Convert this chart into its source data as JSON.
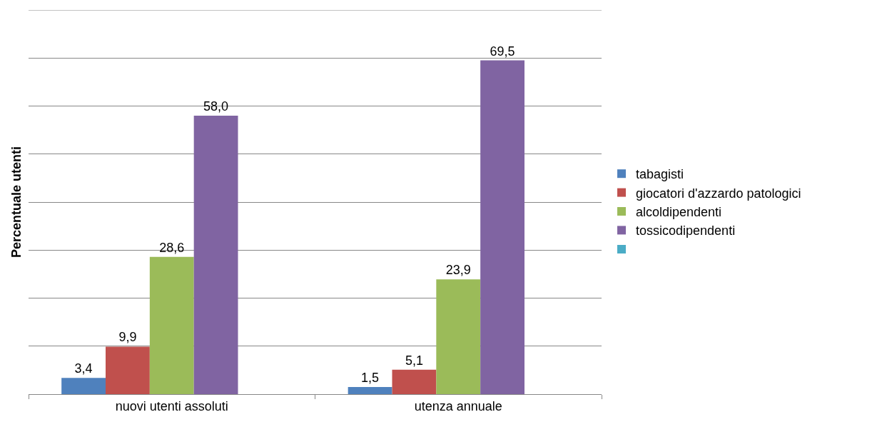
{
  "chart_data": {
    "type": "bar",
    "ylabel": "Percentuale utenti",
    "categories": [
      "nuovi utenti assoluti",
      "utenza annuale"
    ],
    "series": [
      {
        "name": "tabagisti",
        "color": "#4f81bd",
        "values": [
          3.4,
          1.5
        ],
        "value_labels": [
          "3,4",
          "1,5"
        ]
      },
      {
        "name": "giocatori d'azzardo patologici",
        "color": "#c0504d",
        "values": [
          9.9,
          5.1
        ],
        "value_labels": [
          "9,9",
          "5,1"
        ]
      },
      {
        "name": "alcoldipendenti",
        "color": "#9bbb59",
        "values": [
          28.6,
          23.9
        ],
        "value_labels": [
          "28,6",
          "23,9"
        ]
      },
      {
        "name": "tossicodipendenti",
        "color": "#8064a2",
        "values": [
          58.0,
          69.5
        ],
        "value_labels": [
          "58,0",
          "69,5"
        ]
      },
      {
        "color": "#4bacc6",
        "values": [
          null,
          null
        ]
      }
    ],
    "ylim": [
      0,
      80
    ],
    "yticks": [
      {
        "value": 0,
        "label": null
      },
      {
        "value": 10,
        "label": null
      },
      {
        "value": 20,
        "label": null
      },
      {
        "value": 30,
        "label": null
      },
      {
        "value": 40,
        "label": null
      },
      {
        "value": 50,
        "label": null
      },
      {
        "value": 60,
        "label": null
      },
      {
        "value": 70,
        "label": null
      },
      {
        "value": 80,
        "label": null
      }
    ],
    "tick_labels": "x",
    "grid": "y",
    "legend": "right"
  }
}
